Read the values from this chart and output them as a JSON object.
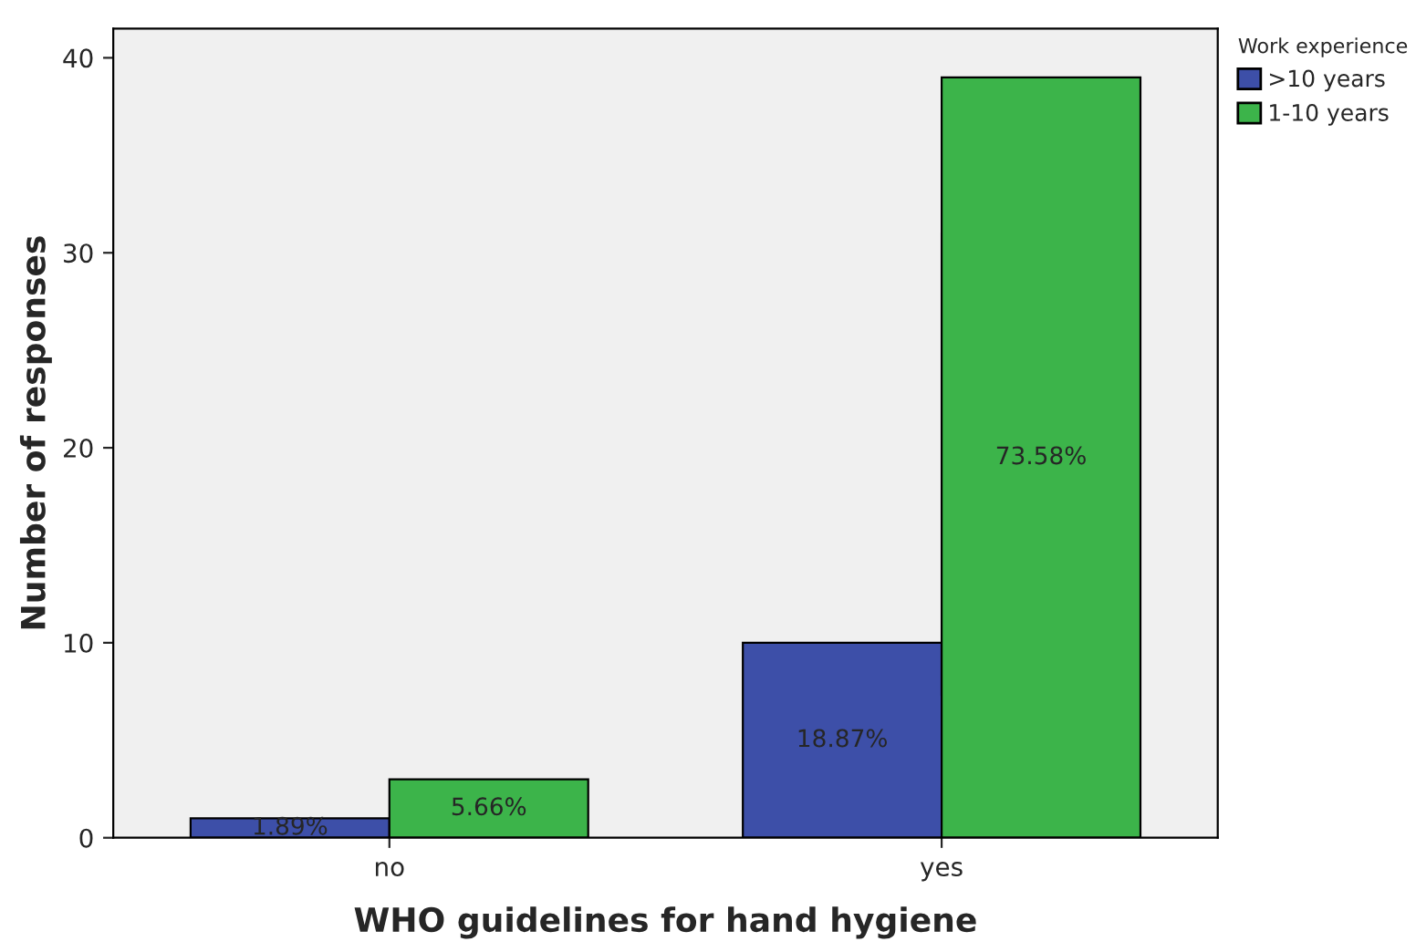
{
  "chart_data": {
    "type": "bar",
    "xlabel": "WHO guidelines for hand hygiene",
    "ylabel": "Number of responses",
    "legend_title": "Work experience",
    "categories": [
      "no",
      "yes"
    ],
    "series": [
      {
        "name": ">10 years",
        "color": "#3d4fa8",
        "values": [
          1,
          10
        ]
      },
      {
        "name": "1-10 years",
        "color": "#3cb44a",
        "values": [
          3,
          39
        ]
      }
    ],
    "annotations": [
      "1.89%",
      "18.87%",
      "5.66%",
      "73.58%"
    ],
    "ylim": [
      0,
      41.5
    ],
    "yticks": [
      0,
      10,
      20,
      30,
      40
    ],
    "grid": false,
    "legend": "top right"
  }
}
